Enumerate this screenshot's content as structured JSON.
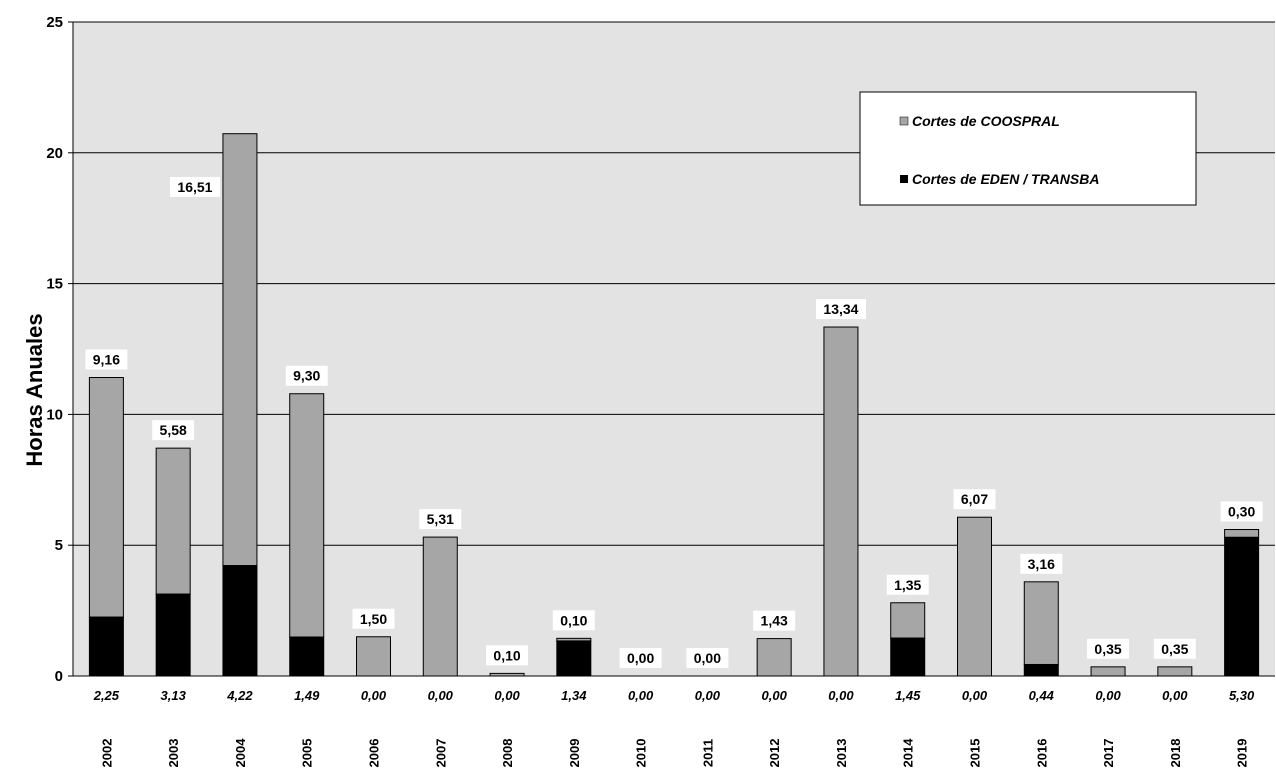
{
  "chart_data": {
    "type": "bar",
    "stacked": true,
    "ylabel": "Horas Anuales",
    "ylim": [
      0,
      25
    ],
    "yticks": [
      0,
      5,
      10,
      15,
      20,
      25
    ],
    "grid": true,
    "legend_position": "top-right",
    "categories": [
      "2002",
      "2003",
      "2004",
      "2005",
      "2006",
      "2007",
      "2008",
      "2009",
      "2010",
      "2011",
      "2012",
      "2013",
      "2014",
      "2015",
      "2016",
      "2017",
      "2018",
      "2019"
    ],
    "series": [
      {
        "name": "Cortes de EDEN / TRANSBA",
        "color": "#000000",
        "values": [
          2.25,
          3.13,
          4.22,
          1.49,
          0.0,
          0.0,
          0.0,
          1.34,
          0.0,
          0.0,
          0.0,
          0.0,
          1.45,
          0.0,
          0.44,
          0.0,
          0.0,
          5.3
        ],
        "labels": [
          "2,25",
          "3,13",
          "4,22",
          "1,49",
          "0,00",
          "0,00",
          "0,00",
          "1,34",
          "0,00",
          "0,00",
          "0,00",
          "0,00",
          "1,45",
          "0,00",
          "0,44",
          "0,00",
          "0,00",
          "5,30"
        ]
      },
      {
        "name": "Cortes de COOSPRAL",
        "color": "#a6a6a6",
        "values": [
          9.16,
          5.58,
          16.51,
          9.3,
          1.5,
          5.31,
          0.1,
          0.1,
          0.0,
          0.0,
          1.43,
          13.34,
          1.35,
          6.07,
          3.16,
          0.35,
          0.35,
          0.3
        ],
        "labels": [
          "9,16",
          "5,58",
          "16,51",
          "9,30",
          "1,50",
          "5,31",
          "0,10",
          "0,10",
          "0,00",
          "0,00",
          "1,43",
          "13,34",
          "1,35",
          "6,07",
          "3,16",
          "0,35",
          "0,35",
          "0,30"
        ]
      }
    ],
    "legend": [
      {
        "label": "Cortes de COOSPRAL",
        "color": "#a6a6a6"
      },
      {
        "label": "Cortes de EDEN / TRANSBA",
        "color": "#000000"
      }
    ],
    "colors": {
      "plot_background": "#e3e3e3",
      "grid": "#000000",
      "grey_bar": "#a6a6a6",
      "black_bar": "#000000"
    }
  }
}
